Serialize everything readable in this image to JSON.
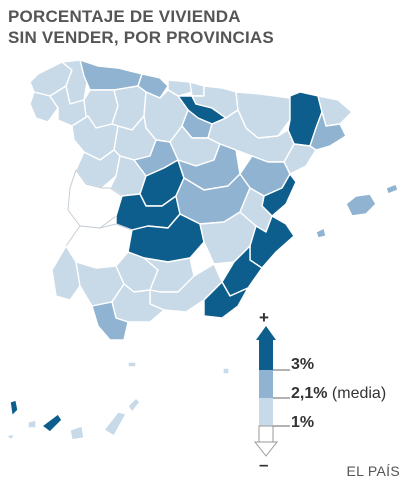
{
  "title": {
    "line1": "PORCENTAJE DE VIVIENDA",
    "line2": "SIN VENDER, POR PROVINCIAS"
  },
  "legend": {
    "plus": "+",
    "minus": "–",
    "high_label": "3%",
    "mid_value": "2,1%",
    "mid_note": "(media)",
    "low_label": "1%"
  },
  "source": "EL PAÍS",
  "colors": {
    "high": "#0d5e8c",
    "mid": "#8fb3d0",
    "low": "#c8d9e7",
    "none": "#ffffff"
  }
}
